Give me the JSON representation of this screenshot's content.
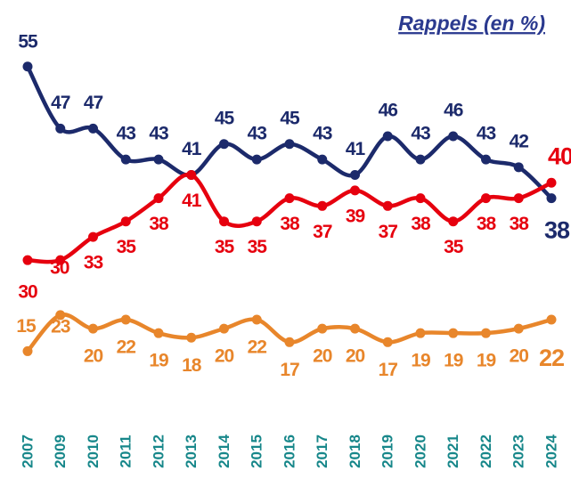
{
  "chart_data": {
    "type": "line",
    "title": "Rappels (en %)",
    "categories": [
      "2007",
      "2009",
      "2010",
      "2011",
      "2012",
      "2013",
      "2014",
      "2015",
      "2016",
      "2017",
      "2018",
      "2019",
      "2020",
      "2021",
      "2022",
      "2023",
      "2024"
    ],
    "ylim": [
      13,
      59
    ],
    "y2lim": [
      6,
      85
    ],
    "grid": false,
    "category_color": "#17878a",
    "series": [
      {
        "color": "#1c2a6b",
        "values": [
          55,
          47,
          47,
          43,
          43,
          41,
          45,
          43,
          45,
          43,
          41,
          46,
          43,
          46,
          43,
          42,
          38
        ]
      },
      {
        "color": "#e6000e",
        "values": [
          30,
          30,
          33,
          35,
          38,
          41,
          35,
          35,
          38,
          37,
          39,
          37,
          38,
          35,
          38,
          38,
          40
        ]
      },
      {
        "color": "#e8862b",
        "axis": "y2",
        "values": [
          15,
          23,
          20,
          22,
          19,
          18,
          20,
          22,
          17,
          20,
          20,
          17,
          19,
          19,
          19,
          20,
          22
        ]
      }
    ]
  }
}
